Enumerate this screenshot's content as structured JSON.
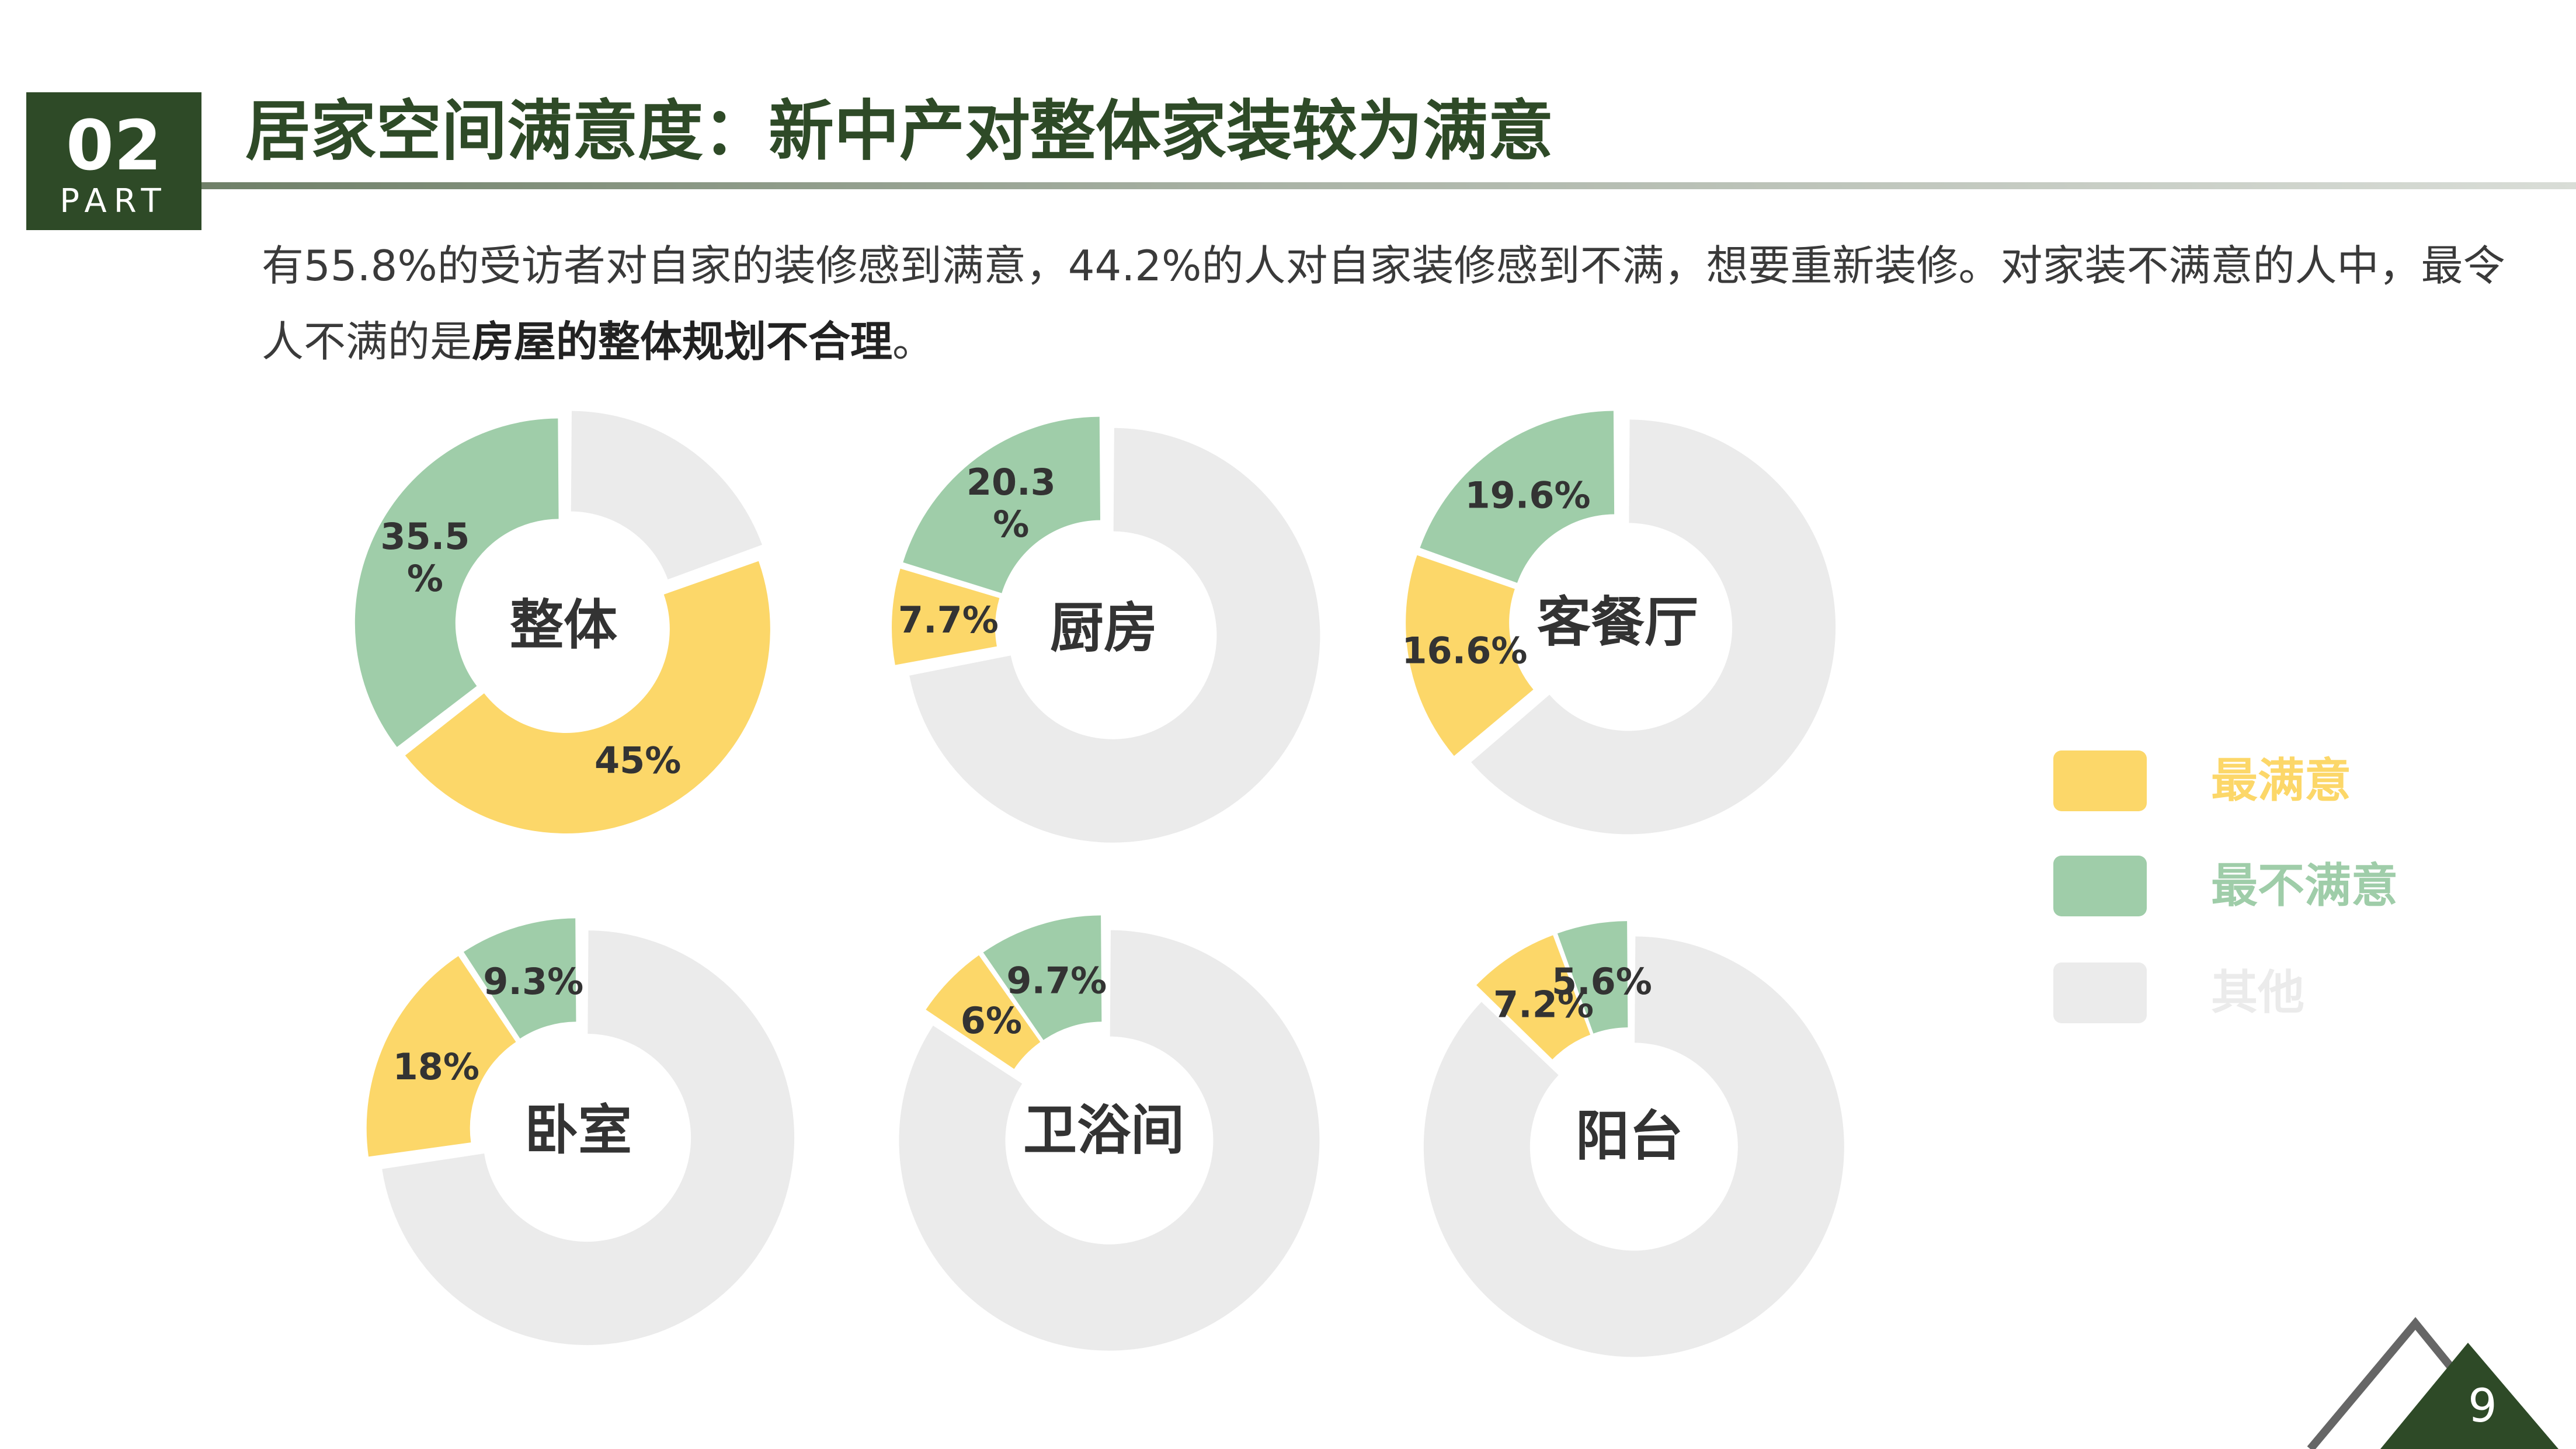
{
  "badge": {
    "number": "02",
    "part": "PART"
  },
  "title": "居家空间满意度：新中产对整体家装较为满意",
  "description": {
    "text_before": "有55.8%的受访者对自家的装修感到满意，44.2%的人对自家装修感到不满，想要重新装修。对家装不满意的人中，最令人不满的是",
    "text_bold": "房屋的整体规划不合理",
    "text_after": "。"
  },
  "colors": {
    "satisfied": "#fcd769",
    "unsatisfied": "#9fcda9",
    "other": "#ebebeb",
    "dark_green": "#2e4a27"
  },
  "legend": [
    {
      "label": "最满意",
      "color": "#fcd769"
    },
    {
      "label": "最不满意",
      "color": "#9fcda9"
    },
    {
      "label": "其他",
      "color": "#ebebeb"
    }
  ],
  "chart_data": [
    {
      "type": "pie",
      "title": "整体",
      "series": [
        {
          "name": "最满意",
          "value": 45,
          "label": "45%"
        },
        {
          "name": "最不满意",
          "value": 35.5,
          "label": "35.5\n%"
        },
        {
          "name": "其他",
          "value": 19.5,
          "label": ""
        }
      ]
    },
    {
      "type": "pie",
      "title": "厨房",
      "series": [
        {
          "name": "最满意",
          "value": 7.7,
          "label": "7.7%"
        },
        {
          "name": "最不满意",
          "value": 20.3,
          "label": "20.3\n%"
        },
        {
          "name": "其他",
          "value": 72,
          "label": ""
        }
      ]
    },
    {
      "type": "pie",
      "title": "客餐厅",
      "series": [
        {
          "name": "最满意",
          "value": 16.6,
          "label": "16.6%"
        },
        {
          "name": "最不满意",
          "value": 19.6,
          "label": "19.6%"
        },
        {
          "name": "其他",
          "value": 63.8,
          "label": ""
        }
      ]
    },
    {
      "type": "pie",
      "title": "卧室",
      "series": [
        {
          "name": "最满意",
          "value": 18,
          "label": "18%"
        },
        {
          "name": "最不满意",
          "value": 9.3,
          "label": "9.3%"
        },
        {
          "name": "其他",
          "value": 72.7,
          "label": ""
        }
      ]
    },
    {
      "type": "pie",
      "title": "卫浴间",
      "series": [
        {
          "name": "最满意",
          "value": 6,
          "label": "6%"
        },
        {
          "name": "最不满意",
          "value": 9.7,
          "label": "9.7%"
        },
        {
          "name": "其他",
          "value": 84.3,
          "label": ""
        }
      ]
    },
    {
      "type": "pie",
      "title": "阳台",
      "series": [
        {
          "name": "最满意",
          "value": 7.2,
          "label": "7.2%"
        },
        {
          "name": "最不满意",
          "value": 5.6,
          "label": "5.6%"
        },
        {
          "name": "其他",
          "value": 87.2,
          "label": ""
        }
      ]
    }
  ],
  "page_number": "9"
}
